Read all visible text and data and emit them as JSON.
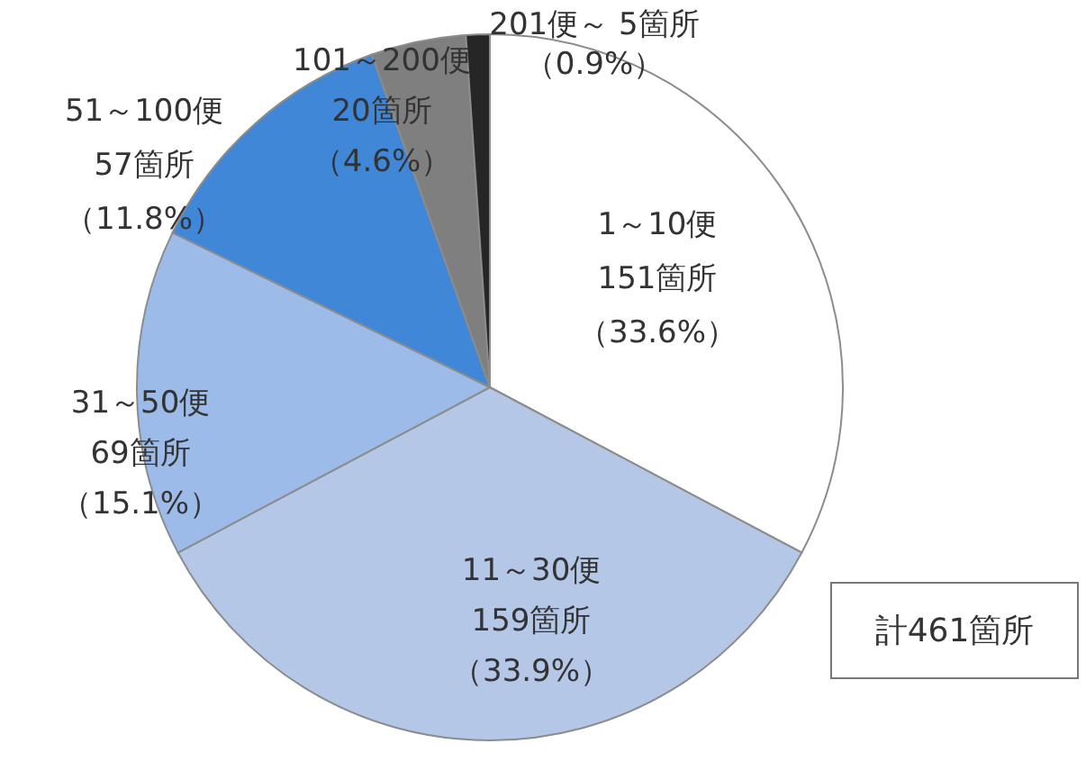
{
  "chart_data": {
    "type": "pie",
    "categories": [
      "1～10便",
      "11～30便",
      "31～50便",
      "51～100便",
      "101～200便",
      "201便～"
    ],
    "values": [
      151,
      159,
      69,
      57,
      20,
      5
    ],
    "colors": [
      "#ffffff",
      "#b4c7e7",
      "#9dbbe8",
      "#4187d8",
      "#7f7f7f",
      "#262626"
    ],
    "value_labels": [
      "151箇所（33.6%）",
      "159箇所（33.9%）",
      "69箇所（15.1%）",
      "57箇所（11.8%）",
      "20箇所（4.6%）",
      "5箇所（0.9%）"
    ],
    "annotations": [
      "計461箇所"
    ]
  }
}
